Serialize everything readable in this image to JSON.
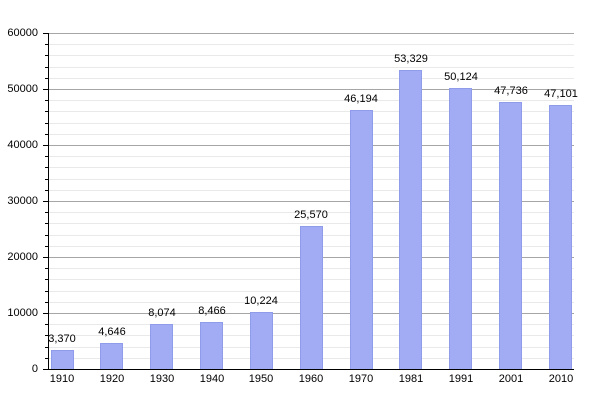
{
  "chart_data": {
    "type": "bar",
    "title": "",
    "xlabel": "",
    "ylabel": "",
    "categories": [
      "1910",
      "1920",
      "1930",
      "1940",
      "1950",
      "1960",
      "1970",
      "1981",
      "1991",
      "2001",
      "2010"
    ],
    "values": [
      3370,
      4646,
      8074,
      8466,
      10224,
      25570,
      46194,
      53329,
      50124,
      47736,
      47101
    ],
    "value_labels": [
      "3,370",
      "4,646",
      "8,074",
      "8,466",
      "10,224",
      "25,570",
      "46,194",
      "53,329",
      "50,124",
      "47,736",
      "47,101"
    ],
    "ylim": [
      0,
      60000
    ],
    "ytick_step": 10000,
    "yminor_step": 2000,
    "ytick_labels": [
      "0",
      "10000",
      "20000",
      "30000",
      "40000",
      "50000",
      "60000"
    ],
    "grid": "horizontal major and minor",
    "legend_position": "none",
    "colors": {
      "bar_fill": "#a2acf4",
      "bar_border": "#8f9cea",
      "major_grid": "#a6a6a6",
      "minor_grid": "#e9e9e9",
      "axis": "#000000",
      "text": "#000000",
      "background": "#ffffff"
    }
  }
}
